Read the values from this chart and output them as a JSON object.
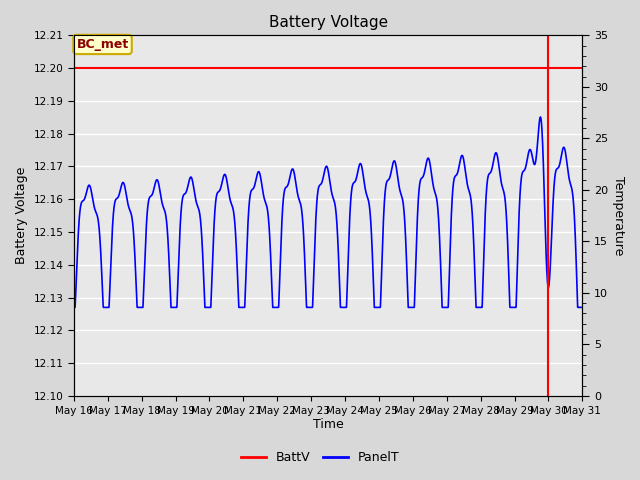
{
  "title": "Battery Voltage",
  "xlabel": "Time",
  "ylabel_left": "Battery Voltage",
  "ylabel_right": "Temperature",
  "annotation_label": "BC_met",
  "ylim_left": [
    12.1,
    12.21
  ],
  "ylim_right": [
    0,
    35
  ],
  "yticks_left": [
    12.1,
    12.11,
    12.12,
    12.13,
    12.14,
    12.15,
    12.16,
    12.17,
    12.18,
    12.19,
    12.2,
    12.21
  ],
  "yticks_right": [
    0,
    5,
    10,
    15,
    20,
    25,
    30,
    35
  ],
  "batt_voltage": 12.2,
  "fig_bg_color": "#d8d8d8",
  "plot_bg_color": "#e8e8e8",
  "grid_color": "white",
  "batt_line_color": "red",
  "panel_line_color": "blue",
  "vline_color": "red",
  "vline_x": 14.0,
  "legend_labels": [
    "BattV",
    "PanelT"
  ],
  "x_tick_labels": [
    "May 16",
    "May 17",
    "May 18",
    "May 19",
    "May 20",
    "May 21",
    "May 22",
    "May 23",
    "May 24",
    "May 25",
    "May 26",
    "May 27",
    "May 28",
    "May 29",
    "May 30",
    "May 31"
  ],
  "days": 15
}
